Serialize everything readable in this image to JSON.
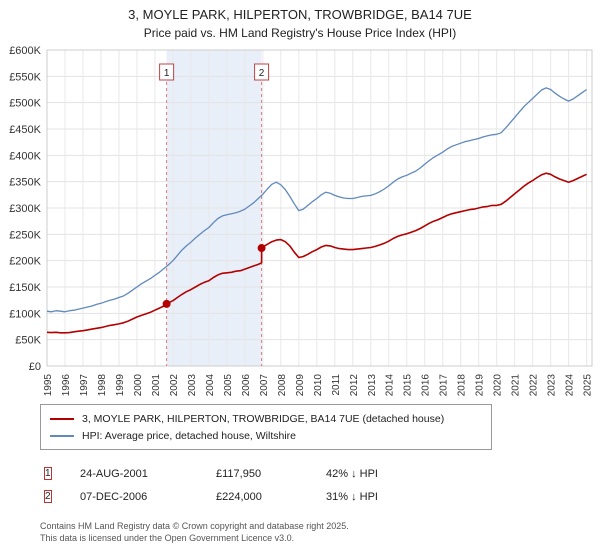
{
  "chart_data": {
    "type": "line",
    "title": "3, MOYLE PARK, HILPERTON, TROWBRIDGE, BA14 7UE",
    "subtitle": "Price paid vs. HM Land Registry's House Price Index (HPI)",
    "ylim": [
      0,
      600000
    ],
    "ytick_step": 50000,
    "ytick_labels": [
      "£0",
      "£50K",
      "£100K",
      "£150K",
      "£200K",
      "£250K",
      "£300K",
      "£350K",
      "£400K",
      "£450K",
      "£500K",
      "£550K",
      "£600K"
    ],
    "xlim": [
      1995,
      2025.3
    ],
    "xticks": [
      1995,
      1996,
      1997,
      1998,
      1999,
      2000,
      2001,
      2002,
      2003,
      2004,
      2005,
      2006,
      2007,
      2008,
      2009,
      2010,
      2011,
      2012,
      2013,
      2014,
      2015,
      2016,
      2017,
      2018,
      2019,
      2020,
      2021,
      2022,
      2023,
      2024,
      2025
    ],
    "grid": true,
    "legend_position": "bottom",
    "shaded_region": {
      "from": 2001.65,
      "to": 2006.93,
      "color": "#e9eff9"
    },
    "marker_line_color": "#d97c7c",
    "series": [
      {
        "name": "3, MOYLE PARK, HILPERTON, TROWBRIDGE, BA14 7UE (detached house)",
        "color": "#b30000",
        "x": [
          1995,
          1995.25,
          1995.5,
          1995.75,
          1996,
          1996.25,
          1996.5,
          1996.75,
          1997,
          1997.25,
          1997.5,
          1997.75,
          1998,
          1998.25,
          1998.5,
          1998.75,
          1999,
          1999.25,
          1999.5,
          1999.75,
          2000,
          2000.25,
          2000.5,
          2000.75,
          2001,
          2001.25,
          2001.5,
          2001.65,
          2001.75,
          2002,
          2002.25,
          2002.5,
          2002.75,
          2003,
          2003.25,
          2003.5,
          2003.75,
          2004,
          2004.25,
          2004.5,
          2004.75,
          2005,
          2005.25,
          2005.5,
          2005.75,
          2006,
          2006.25,
          2006.5,
          2006.75,
          2006.93,
          2006.93,
          2007,
          2007.25,
          2007.5,
          2007.75,
          2008,
          2008.25,
          2008.5,
          2008.75,
          2009,
          2009.25,
          2009.5,
          2009.75,
          2010,
          2010.25,
          2010.5,
          2010.75,
          2011,
          2011.25,
          2011.5,
          2011.75,
          2012,
          2012.25,
          2012.5,
          2012.75,
          2013,
          2013.25,
          2013.5,
          2013.75,
          2014,
          2014.25,
          2014.5,
          2014.75,
          2015,
          2015.25,
          2015.5,
          2015.75,
          2016,
          2016.25,
          2016.5,
          2016.75,
          2017,
          2017.25,
          2017.5,
          2017.75,
          2018,
          2018.25,
          2018.5,
          2018.75,
          2019,
          2019.25,
          2019.5,
          2019.75,
          2020,
          2020.25,
          2020.5,
          2020.75,
          2021,
          2021.25,
          2021.5,
          2021.75,
          2022,
          2022.25,
          2022.5,
          2022.75,
          2023,
          2023.25,
          2023.5,
          2023.75,
          2024,
          2024.25,
          2024.5,
          2024.75,
          2025
        ],
        "values": [
          64000,
          63500,
          64000,
          63000,
          63000,
          63500,
          65000,
          66000,
          67000,
          68500,
          70000,
          71500,
          73000,
          75000,
          77000,
          78500,
          80000,
          82000,
          85000,
          89000,
          93000,
          96000,
          99000,
          102000,
          106000,
          110000,
          114000,
          117950,
          120000,
          124000,
          130000,
          136000,
          141000,
          145000,
          150000,
          155000,
          159000,
          162000,
          168000,
          173000,
          176000,
          177000,
          178000,
          180000,
          181000,
          184000,
          187000,
          190000,
          193000,
          196000,
          224000,
          226000,
          231000,
          236000,
          239000,
          240000,
          236000,
          228000,
          216000,
          206000,
          208000,
          212000,
          217000,
          221000,
          226000,
          229000,
          228000,
          225000,
          223000,
          222000,
          221000,
          221000,
          222000,
          223000,
          224000,
          225000,
          227000,
          230000,
          233000,
          237000,
          242000,
          246000,
          249000,
          251000,
          254000,
          257000,
          261000,
          266000,
          271000,
          275000,
          278000,
          282000,
          286000,
          289000,
          291000,
          293000,
          295000,
          297000,
          298000,
          300000,
          302000,
          303000,
          305000,
          305000,
          307000,
          313000,
          320000,
          327000,
          334000,
          341000,
          347000,
          352000,
          358000,
          363000,
          366000,
          364000,
          359000,
          355000,
          352000,
          349000,
          352000,
          356000,
          360000,
          364000
        ]
      },
      {
        "name": "HPI: Average price, detached house, Wiltshire",
        "color": "#6089bd",
        "x": [
          1995,
          1995.25,
          1995.5,
          1995.75,
          1996,
          1996.25,
          1996.5,
          1996.75,
          1997,
          1997.25,
          1997.5,
          1997.75,
          1998,
          1998.25,
          1998.5,
          1998.75,
          1999,
          1999.25,
          1999.5,
          1999.75,
          2000,
          2000.25,
          2000.5,
          2000.75,
          2001,
          2001.25,
          2001.5,
          2001.75,
          2002,
          2002.25,
          2002.5,
          2002.75,
          2003,
          2003.25,
          2003.5,
          2003.75,
          2004,
          2004.25,
          2004.5,
          2004.75,
          2005,
          2005.25,
          2005.5,
          2005.75,
          2006,
          2006.25,
          2006.5,
          2006.75,
          2007,
          2007.25,
          2007.5,
          2007.75,
          2008,
          2008.25,
          2008.5,
          2008.75,
          2009,
          2009.25,
          2009.5,
          2009.75,
          2010,
          2010.25,
          2010.5,
          2010.75,
          2011,
          2011.25,
          2011.5,
          2011.75,
          2012,
          2012.25,
          2012.5,
          2012.75,
          2013,
          2013.25,
          2013.5,
          2013.75,
          2014,
          2014.25,
          2014.5,
          2014.75,
          2015,
          2015.25,
          2015.5,
          2015.75,
          2016,
          2016.25,
          2016.5,
          2016.75,
          2017,
          2017.25,
          2017.5,
          2017.75,
          2018,
          2018.25,
          2018.5,
          2018.75,
          2019,
          2019.25,
          2019.5,
          2019.75,
          2020,
          2020.25,
          2020.5,
          2020.75,
          2021,
          2021.25,
          2021.5,
          2021.75,
          2022,
          2022.25,
          2022.5,
          2022.75,
          2023,
          2023.25,
          2023.5,
          2023.75,
          2024,
          2024.25,
          2024.5,
          2024.75,
          2025
        ],
        "values": [
          104000,
          103000,
          105000,
          104000,
          103000,
          105000,
          106000,
          108000,
          110000,
          112000,
          114000,
          117000,
          119000,
          122000,
          125000,
          127000,
          130000,
          133000,
          138000,
          144000,
          150000,
          156000,
          161000,
          166000,
          172000,
          178000,
          185000,
          192000,
          200000,
          210000,
          220000,
          228000,
          235000,
          243000,
          250000,
          257000,
          263000,
          272000,
          280000,
          285000,
          287000,
          289000,
          291000,
          294000,
          298000,
          304000,
          310000,
          318000,
          326000,
          336000,
          345000,
          349000,
          344000,
          335000,
          322000,
          308000,
          295000,
          298000,
          305000,
          312000,
          318000,
          325000,
          330000,
          328000,
          324000,
          321000,
          319000,
          318000,
          318000,
          320000,
          322000,
          323000,
          324000,
          327000,
          331000,
          336000,
          342000,
          349000,
          355000,
          359000,
          362000,
          366000,
          370000,
          376000,
          383000,
          390000,
          396000,
          401000,
          406000,
          412000,
          417000,
          420000,
          423000,
          426000,
          428000,
          430000,
          432000,
          435000,
          437000,
          439000,
          440000,
          443000,
          452000,
          462000,
          472000,
          482000,
          492000,
          500000,
          508000,
          516000,
          524000,
          528000,
          525000,
          518000,
          512000,
          507000,
          503000,
          507000,
          513000,
          519000,
          525000
        ]
      }
    ],
    "markers": [
      {
        "label": "1",
        "x": 2001.65,
        "y": 117950
      },
      {
        "label": "2",
        "x": 2006.93,
        "y": 224000
      }
    ]
  },
  "transactions": [
    {
      "num": "1",
      "date": "24-AUG-2001",
      "price": "£117,950",
      "delta": "42% ↓ HPI"
    },
    {
      "num": "2",
      "date": "07-DEC-2006",
      "price": "£224,000",
      "delta": "31% ↓ HPI"
    }
  ],
  "footer": {
    "line1": "Contains HM Land Registry data © Crown copyright and database right 2025.",
    "line2": "This data is licensed under the Open Government Licence v3.0."
  }
}
